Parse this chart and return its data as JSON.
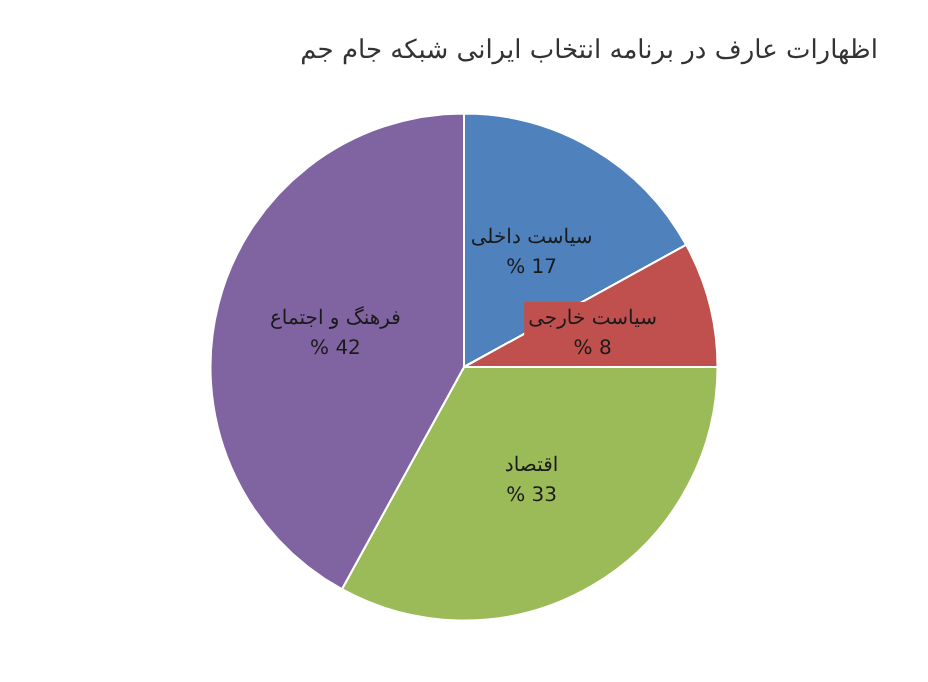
{
  "chart_data": {
    "type": "pie",
    "title": "اظهارات عارف در برنامه انتخاب ایرانی شبکه جام جم",
    "categories": [
      "سیاست داخلی",
      "سیاست خارجی",
      "اقتصاد",
      "فرهنگ و اجتماع"
    ],
    "values": [
      17,
      8,
      33,
      42
    ],
    "colors": [
      "#4f81bd",
      "#c0504d",
      "#9bbb59",
      "#8064a2"
    ],
    "value_labels": [
      "% 17",
      "% 8",
      "% 33",
      "% 42"
    ],
    "legend": false
  }
}
